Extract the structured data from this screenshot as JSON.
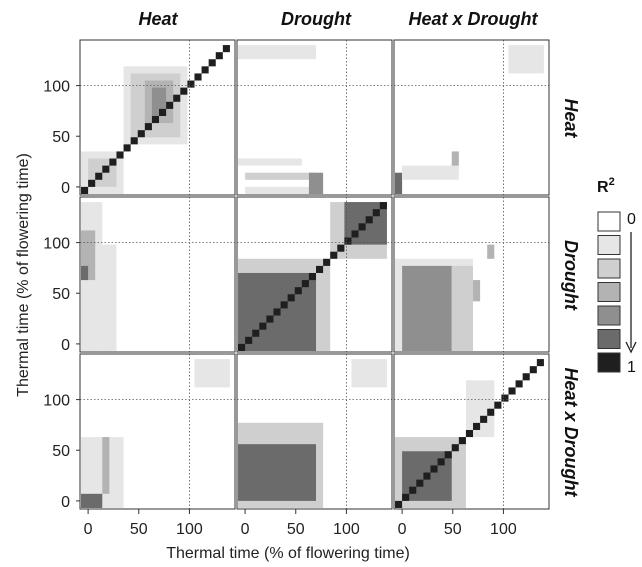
{
  "chart_data": {
    "type": "heatmap",
    "col_titles": [
      "Heat",
      "Drought",
      "Heat x Drought"
    ],
    "row_titles": [
      "Heat",
      "Drought",
      "Heat x Drought"
    ],
    "xlabel": "Thermal time (% of flowering time)",
    "ylabel": "Thermal time (% of flowering time)",
    "x_ticks": [
      "0",
      "50",
      "100"
    ],
    "y_ticks": [
      "0",
      "50",
      "100"
    ],
    "xlim": [
      -8,
      145
    ],
    "ylim": [
      -8,
      145
    ],
    "grid_reference_lines": [
      0,
      100
    ],
    "legend": {
      "title": "R²",
      "top_label": "0",
      "bottom_label": "1",
      "levels": [
        0,
        0.2,
        0.4,
        0.6,
        0.8,
        1.0
      ],
      "colors": [
        "#ffffff",
        "#e6e6e6",
        "#cfcfcf",
        "#b3b3b3",
        "#8f8f8f",
        "#6b6b6b",
        "#1f1f1f"
      ]
    },
    "cell_size": 7,
    "panels": [
      {
        "row": "Heat",
        "col": "Heat",
        "blocks": [
          {
            "x": [
              -7,
              140
            ],
            "y": [
              -7,
              140
            ],
            "v": 0.0
          },
          {
            "x": [
              -7,
              35
            ],
            "y": [
              -7,
              35
            ],
            "v": 1
          },
          {
            "x": [
              0,
              28
            ],
            "y": [
              0,
              28
            ],
            "v": 2
          },
          {
            "x": [
              35,
              98
            ],
            "y": [
              42,
              119
            ],
            "v": 1
          },
          {
            "x": [
              42,
              91
            ],
            "y": [
              49,
              112
            ],
            "v": 2
          },
          {
            "x": [
              56,
              84
            ],
            "y": [
              63,
              105
            ],
            "v": 3
          },
          {
            "x": [
              63,
              77
            ],
            "y": [
              70,
              98
            ],
            "v": 4
          },
          {
            "x": [
              -7,
              140
            ],
            "y": [
              -7,
              140
            ],
            "v": "diag"
          }
        ]
      },
      {
        "row": "Heat",
        "col": "Drought",
        "blocks": [
          {
            "x": [
              -7,
              70
            ],
            "y": [
              126,
              140
            ],
            "v": 1
          },
          {
            "x": [
              0,
              70
            ],
            "y": [
              -7,
              0
            ],
            "v": 1
          },
          {
            "x": [
              0,
              70
            ],
            "y": [
              7,
              14
            ],
            "v": 2
          },
          {
            "x": [
              63,
              77
            ],
            "y": [
              -7,
              14
            ],
            "v": 4
          },
          {
            "x": [
              -7,
              56
            ],
            "y": [
              21,
              28
            ],
            "v": 1
          }
        ]
      },
      {
        "row": "Heat",
        "col": "Heat x Drought",
        "blocks": [
          {
            "x": [
              -7,
              0
            ],
            "y": [
              -7,
              14
            ],
            "v": 5
          },
          {
            "x": [
              0,
              56
            ],
            "y": [
              7,
              21
            ],
            "v": 1
          },
          {
            "x": [
              49,
              56
            ],
            "y": [
              21,
              35
            ],
            "v": 3
          },
          {
            "x": [
              105,
              140
            ],
            "y": [
              112,
              140
            ],
            "v": 1
          }
        ]
      },
      {
        "row": "Drought",
        "col": "Heat",
        "blocks": [
          {
            "x": [
              -7,
              14
            ],
            "y": [
              -7,
              140
            ],
            "v": 1
          },
          {
            "x": [
              -7,
              7
            ],
            "y": [
              63,
              112
            ],
            "v": 3
          },
          {
            "x": [
              -7,
              0
            ],
            "y": [
              63,
              77
            ],
            "v": 5
          },
          {
            "x": [
              14,
              28
            ],
            "y": [
              -7,
              98
            ],
            "v": 1
          }
        ]
      },
      {
        "row": "Drought",
        "col": "Drought",
        "blocks": [
          {
            "x": [
              -7,
              140
            ],
            "y": [
              -7,
              140
            ],
            "v": 0
          },
          {
            "x": [
              -7,
              84
            ],
            "y": [
              -7,
              84
            ],
            "v": 2
          },
          {
            "x": [
              -7,
              70
            ],
            "y": [
              -7,
              70
            ],
            "v": 5
          },
          {
            "x": [
              84,
              140
            ],
            "y": [
              84,
              140
            ],
            "v": 2
          },
          {
            "x": [
              98,
              140
            ],
            "y": [
              98,
              140
            ],
            "v": 5
          },
          {
            "x": [
              -7,
              140
            ],
            "y": [
              -7,
              140
            ],
            "v": "diag"
          }
        ]
      },
      {
        "row": "Drought",
        "col": "Heat x Drought",
        "blocks": [
          {
            "x": [
              -7,
              70
            ],
            "y": [
              -7,
              84
            ],
            "v": 1
          },
          {
            "x": [
              0,
              49
            ],
            "y": [
              -7,
              77
            ],
            "v": 4
          },
          {
            "x": [
              49,
              70
            ],
            "y": [
              -7,
              77
            ],
            "v": 2
          },
          {
            "x": [
              70,
              77
            ],
            "y": [
              42,
              63
            ],
            "v": 3
          },
          {
            "x": [
              84,
              91
            ],
            "y": [
              84,
              98
            ],
            "v": 3
          }
        ]
      },
      {
        "row": "Heat x Drought",
        "col": "Heat",
        "blocks": [
          {
            "x": [
              -7,
              35
            ],
            "y": [
              -7,
              63
            ],
            "v": 1
          },
          {
            "x": [
              14,
              21
            ],
            "y": [
              7,
              63
            ],
            "v": 3
          },
          {
            "x": [
              -7,
              14
            ],
            "y": [
              -7,
              7
            ],
            "v": 5
          },
          {
            "x": [
              105,
              140
            ],
            "y": [
              112,
              140
            ],
            "v": 1
          }
        ]
      },
      {
        "row": "Heat x Drought",
        "col": "Drought",
        "blocks": [
          {
            "x": [
              -7,
              77
            ],
            "y": [
              -7,
              77
            ],
            "v": 2
          },
          {
            "x": [
              -7,
              70
            ],
            "y": [
              0,
              56
            ],
            "v": 5
          },
          {
            "x": [
              -7,
              77
            ],
            "y": [
              63,
              77
            ],
            "v": 2
          },
          {
            "x": [
              105,
              140
            ],
            "y": [
              112,
              140
            ],
            "v": 1
          }
        ]
      },
      {
        "row": "Heat x Drought",
        "col": "Heat x Drought",
        "blocks": [
          {
            "x": [
              -7,
              140
            ],
            "y": [
              -7,
              140
            ],
            "v": 0
          },
          {
            "x": [
              -7,
              63
            ],
            "y": [
              -7,
              63
            ],
            "v": 2
          },
          {
            "x": [
              0,
              49
            ],
            "y": [
              0,
              49
            ],
            "v": 5
          },
          {
            "x": [
              63,
              91
            ],
            "y": [
              63,
              119
            ],
            "v": 1
          },
          {
            "x": [
              -7,
              140
            ],
            "y": [
              -7,
              140
            ],
            "v": "diag"
          }
        ]
      }
    ]
  }
}
